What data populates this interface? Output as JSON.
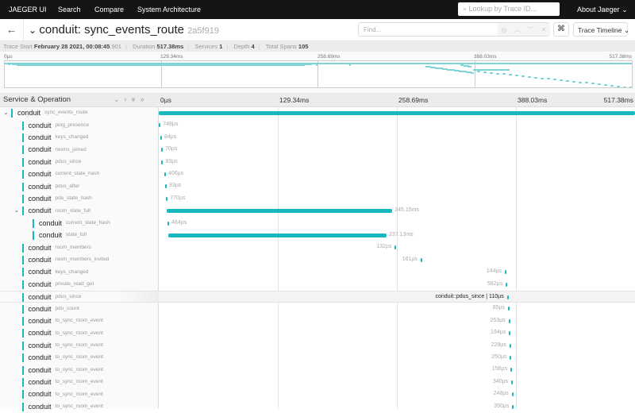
{
  "nav": {
    "brand": "JAEGER UI",
    "items": [
      "Search",
      "Compare",
      "System Architecture"
    ],
    "lookup_placeholder": "Lookup by Trace ID...",
    "about": "About Jaeger"
  },
  "trace": {
    "service": "conduit",
    "operation": "sync_events_route",
    "title": "conduit: sync_events_route",
    "trace_id": "2a5f919"
  },
  "find": {
    "placeholder": "Find..."
  },
  "view_select": "Trace Timeline",
  "summary": {
    "start_label": "Trace Start",
    "start_date": "February 28 2021, 00:08:45",
    "start_ms": ".901",
    "duration_label": "Duration",
    "duration": "517.38ms",
    "services_label": "Services",
    "services": "1",
    "depth_label": "Depth",
    "depth": "4",
    "spans_label": "Total Spans",
    "spans": "105"
  },
  "ticks": [
    "0µs",
    "129.34ms",
    "258.69ms",
    "388.03ms",
    "517.38ms"
  ],
  "total_ms": 517.38,
  "header": {
    "title": "Service & Operation"
  },
  "colors": {
    "accent": "#17b8be",
    "nav": "#151515"
  },
  "hover_label": "conduit::pdus_since | 110µs",
  "spans": [
    {
      "service": "conduit",
      "op": "sync_events_route",
      "depth": 0,
      "start": 0,
      "dur": 517.38,
      "label": "",
      "collapsible": true
    },
    {
      "service": "conduit",
      "op": "ping_presence",
      "depth": 1,
      "start": 0.2,
      "dur": 0.748,
      "label": "748µs"
    },
    {
      "service": "conduit",
      "op": "keys_changed",
      "depth": 1,
      "start": 1.7,
      "dur": 0.084,
      "label": "84µs"
    },
    {
      "service": "conduit",
      "op": "rooms_joined",
      "depth": 1,
      "start": 2.6,
      "dur": 0.07,
      "label": "70µs"
    },
    {
      "service": "conduit",
      "op": "pdus_since",
      "depth": 1,
      "start": 3.0,
      "dur": 0.083,
      "label": "83µs"
    },
    {
      "service": "conduit",
      "op": "current_state_hash",
      "depth": 1,
      "start": 6.0,
      "dur": 0.406,
      "label": "406µs"
    },
    {
      "service": "conduit",
      "op": "pdus_after",
      "depth": 1,
      "start": 7.0,
      "dur": 0.083,
      "label": "83µs"
    },
    {
      "service": "conduit",
      "op": "pdu_state_hash",
      "depth": 1,
      "start": 8.0,
      "dur": 0.77,
      "label": "770µs"
    },
    {
      "service": "conduit",
      "op": "room_state_full",
      "depth": 1,
      "start": 8.6,
      "dur": 245.15,
      "label": "245.15ms",
      "collapsible": true
    },
    {
      "service": "conduit",
      "op": "current_state_hash",
      "depth": 2,
      "start": 9.5,
      "dur": 0.464,
      "label": "464µs"
    },
    {
      "service": "conduit",
      "op": "state_full",
      "depth": 2,
      "start": 10.3,
      "dur": 237.13,
      "label": "237.13ms"
    },
    {
      "service": "conduit",
      "op": "room_members",
      "depth": 1,
      "start": 256.5,
      "dur": 0.132,
      "label": "132µs"
    },
    {
      "service": "conduit",
      "op": "room_members_invited",
      "depth": 1,
      "start": 284.5,
      "dur": 0.161,
      "label": "161µs"
    },
    {
      "service": "conduit",
      "op": "keys_changed",
      "depth": 1,
      "start": 376.0,
      "dur": 0.144,
      "label": "144µs"
    },
    {
      "service": "conduit",
      "op": "private_read_get",
      "depth": 1,
      "start": 377.0,
      "dur": 0.582,
      "label": "582µs"
    },
    {
      "service": "conduit",
      "op": "pdus_since",
      "depth": 1,
      "start": 378.3,
      "dur": 0.11,
      "label": "110µs",
      "hover": true
    },
    {
      "service": "conduit",
      "op": "pdu_count",
      "depth": 1,
      "start": 379.5,
      "dur": 0.085,
      "label": "85µs"
    },
    {
      "service": "conduit",
      "op": "to_sync_room_event",
      "depth": 1,
      "start": 380.0,
      "dur": 0.253,
      "label": "253µs"
    },
    {
      "service": "conduit",
      "op": "to_sync_room_event",
      "depth": 1,
      "start": 380.5,
      "dur": 0.194,
      "label": "194µs"
    },
    {
      "service": "conduit",
      "op": "to_sync_room_event",
      "depth": 1,
      "start": 381.0,
      "dur": 0.229,
      "label": "229µs"
    },
    {
      "service": "conduit",
      "op": "to_sync_room_event",
      "depth": 1,
      "start": 381.5,
      "dur": 0.25,
      "label": "250µs"
    },
    {
      "service": "conduit",
      "op": "to_sync_room_event",
      "depth": 1,
      "start": 382.0,
      "dur": 0.156,
      "label": "156µs"
    },
    {
      "service": "conduit",
      "op": "to_sync_room_event",
      "depth": 1,
      "start": 383.0,
      "dur": 0.34,
      "label": "340µs"
    },
    {
      "service": "conduit",
      "op": "to_sync_room_event",
      "depth": 1,
      "start": 383.5,
      "dur": 0.248,
      "label": "248µs"
    },
    {
      "service": "conduit",
      "op": "to_sync_room_event",
      "depth": 1,
      "start": 384.0,
      "dur": 0.39,
      "label": "390µs"
    }
  ]
}
